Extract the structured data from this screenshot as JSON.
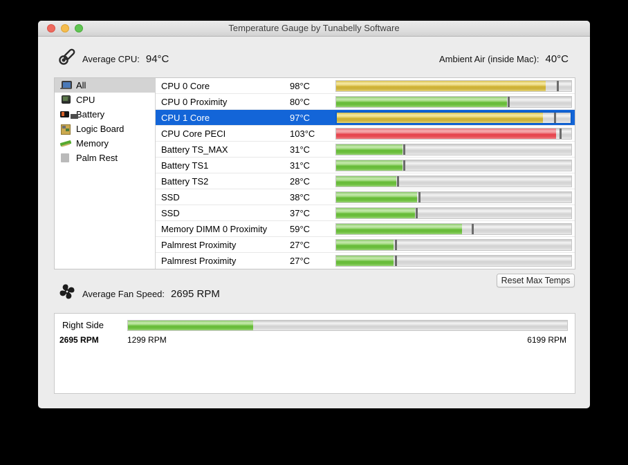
{
  "window": {
    "title": "Temperature Gauge by Tunabelly Software"
  },
  "header": {
    "avg_cpu_label": "Average CPU:",
    "avg_cpu_value": "94°C",
    "ambient_label": "Ambient Air (inside Mac):",
    "ambient_value": "40°C",
    "thermometer_icon": "thermometer-icon"
  },
  "sidebar": {
    "items": [
      {
        "label": "All",
        "icon": "laptop-icon",
        "selected": true
      },
      {
        "label": "CPU",
        "icon": "cpu-icon",
        "selected": false
      },
      {
        "label": "Battery",
        "icon": "battery-icon",
        "selected": false
      },
      {
        "label": "Logic Board",
        "icon": "logic-board-icon",
        "selected": false
      },
      {
        "label": "Memory",
        "icon": "memory-icon",
        "selected": false
      },
      {
        "label": "Palm Rest",
        "icon": "palm-rest-icon",
        "selected": false
      }
    ]
  },
  "chart_data": [
    {
      "type": "bar",
      "title": "Sensor temperatures",
      "unit": "°C",
      "axis_range": [
        0,
        110
      ],
      "legend": "vertical tick on each bar marks recorded max temperature",
      "rows": [
        {
          "name": "CPU 0 Core",
          "value": 98,
          "display": "98°C",
          "color": "yellow",
          "max_value": 104,
          "selected": false
        },
        {
          "name": "CPU 0 Proximity",
          "value": 80,
          "display": "80°C",
          "color": "green",
          "max_value": 81,
          "selected": false
        },
        {
          "name": "CPU 1 Core",
          "value": 97,
          "display": "97°C",
          "color": "yellow",
          "max_value": 103,
          "selected": true
        },
        {
          "name": "CPU Core PECI",
          "value": 103,
          "display": "103°C",
          "color": "red",
          "max_value": 105,
          "selected": false
        },
        {
          "name": "Battery TS_MAX",
          "value": 31,
          "display": "31°C",
          "color": "green",
          "max_value": 32,
          "selected": false
        },
        {
          "name": "Battery TS1",
          "value": 31,
          "display": "31°C",
          "color": "green",
          "max_value": 32,
          "selected": false
        },
        {
          "name": "Battery TS2",
          "value": 28,
          "display": "28°C",
          "color": "green",
          "max_value": 29,
          "selected": false
        },
        {
          "name": "SSD",
          "value": 38,
          "display": "38°C",
          "color": "green",
          "max_value": 39,
          "selected": false
        },
        {
          "name": "SSD",
          "value": 37,
          "display": "37°C",
          "color": "green",
          "max_value": 38,
          "selected": false
        },
        {
          "name": "Memory DIMM 0 Proximity",
          "value": 59,
          "display": "59°C",
          "color": "green",
          "max_value": 64,
          "selected": false
        },
        {
          "name": "Palmrest Proximity",
          "value": 27,
          "display": "27°C",
          "color": "green",
          "max_value": 28,
          "selected": false
        },
        {
          "name": "Palmrest Proximity",
          "value": 27,
          "display": "27°C",
          "color": "green",
          "max_value": 28,
          "selected": false
        }
      ]
    },
    {
      "type": "bar",
      "title": "Fan speed",
      "unit": "RPM",
      "rows": [
        {
          "name": "Right Side",
          "current": 2695,
          "current_display": "2695 RPM",
          "min": 1299,
          "min_display": "1299 RPM",
          "max": 6199,
          "max_display": "6199 RPM"
        }
      ]
    }
  ],
  "actions": {
    "reset_button": "Reset Max Temps"
  },
  "fan_header": {
    "label": "Average Fan Speed:",
    "value": "2695 RPM",
    "icon": "fan-icon"
  },
  "colors": {
    "selection": "#1365d8",
    "bar_yellow": "#d4ba42",
    "bar_green": "#76c043",
    "bar_red": "#e85159",
    "marker_gray": "#6b6b6b",
    "traffic_red": "#ee6a5f",
    "traffic_yellow": "#f5bd4f",
    "traffic_green": "#61c553"
  }
}
